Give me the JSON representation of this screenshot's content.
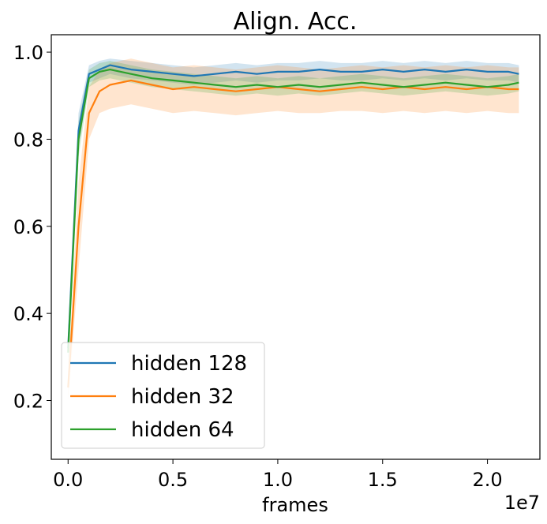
{
  "chart_data": {
    "type": "line",
    "title": "Align. Acc.",
    "xlabel": "frames",
    "ylabel": "",
    "x_offset_label": "1e7",
    "xlim": [
      -0.08,
      2.25
    ],
    "ylim": [
      0.065,
      1.04
    ],
    "x_ticks": [
      0.0,
      0.5,
      1.0,
      1.5,
      2.0
    ],
    "x_tick_labels": [
      "0.0",
      "0.5",
      "1.0",
      "1.5",
      "2.0"
    ],
    "y_ticks": [
      0.2,
      0.4,
      0.6,
      0.8,
      1.0
    ],
    "y_tick_labels": [
      "0.2",
      "0.4",
      "0.6",
      "0.8",
      "1.0"
    ],
    "grid": false,
    "legend_position": "lower-left",
    "x": [
      0.0,
      0.05,
      0.1,
      0.15,
      0.2,
      0.3,
      0.4,
      0.5,
      0.6,
      0.7,
      0.8,
      0.9,
      1.0,
      1.1,
      1.2,
      1.3,
      1.4,
      1.5,
      1.6,
      1.7,
      1.8,
      1.9,
      2.0,
      2.1,
      2.15
    ],
    "series": [
      {
        "name": "hidden 128",
        "color": "#1f77b4",
        "values": [
          0.32,
          0.82,
          0.95,
          0.96,
          0.97,
          0.96,
          0.955,
          0.95,
          0.945,
          0.95,
          0.955,
          0.95,
          0.955,
          0.955,
          0.96,
          0.955,
          0.955,
          0.96,
          0.955,
          0.96,
          0.955,
          0.96,
          0.955,
          0.955,
          0.95
        ],
        "lower": [
          0.29,
          0.78,
          0.93,
          0.94,
          0.95,
          0.94,
          0.935,
          0.93,
          0.925,
          0.93,
          0.935,
          0.93,
          0.935,
          0.935,
          0.94,
          0.935,
          0.935,
          0.94,
          0.935,
          0.94,
          0.935,
          0.94,
          0.935,
          0.935,
          0.93
        ],
        "upper": [
          0.35,
          0.86,
          0.97,
          0.98,
          0.985,
          0.98,
          0.975,
          0.97,
          0.965,
          0.97,
          0.975,
          0.97,
          0.975,
          0.975,
          0.98,
          0.975,
          0.975,
          0.98,
          0.975,
          0.98,
          0.975,
          0.98,
          0.975,
          0.975,
          0.97
        ]
      },
      {
        "name": "hidden 32",
        "color": "#ff7f0e",
        "values": [
          0.23,
          0.6,
          0.86,
          0.91,
          0.925,
          0.935,
          0.925,
          0.915,
          0.92,
          0.915,
          0.91,
          0.915,
          0.92,
          0.915,
          0.91,
          0.915,
          0.92,
          0.915,
          0.92,
          0.915,
          0.92,
          0.915,
          0.92,
          0.915,
          0.915
        ],
        "lower": [
          0.2,
          0.5,
          0.8,
          0.86,
          0.87,
          0.88,
          0.87,
          0.86,
          0.865,
          0.86,
          0.855,
          0.86,
          0.865,
          0.86,
          0.86,
          0.865,
          0.865,
          0.86,
          0.865,
          0.86,
          0.865,
          0.86,
          0.865,
          0.86,
          0.86
        ],
        "upper": [
          0.26,
          0.7,
          0.92,
          0.96,
          0.975,
          0.985,
          0.975,
          0.965,
          0.97,
          0.965,
          0.96,
          0.965,
          0.97,
          0.965,
          0.96,
          0.965,
          0.97,
          0.965,
          0.97,
          0.965,
          0.97,
          0.965,
          0.97,
          0.965,
          0.965
        ]
      },
      {
        "name": "hidden 64",
        "color": "#2ca02c",
        "values": [
          0.31,
          0.8,
          0.94,
          0.955,
          0.96,
          0.95,
          0.94,
          0.935,
          0.93,
          0.925,
          0.92,
          0.925,
          0.92,
          0.925,
          0.92,
          0.925,
          0.93,
          0.925,
          0.92,
          0.925,
          0.93,
          0.925,
          0.92,
          0.925,
          0.93
        ],
        "lower": [
          0.28,
          0.76,
          0.92,
          0.935,
          0.94,
          0.93,
          0.92,
          0.915,
          0.91,
          0.905,
          0.9,
          0.905,
          0.9,
          0.905,
          0.9,
          0.905,
          0.91,
          0.905,
          0.9,
          0.905,
          0.91,
          0.905,
          0.9,
          0.905,
          0.91
        ],
        "upper": [
          0.34,
          0.84,
          0.96,
          0.975,
          0.98,
          0.97,
          0.96,
          0.955,
          0.95,
          0.945,
          0.94,
          0.945,
          0.94,
          0.945,
          0.94,
          0.945,
          0.95,
          0.945,
          0.94,
          0.945,
          0.95,
          0.945,
          0.94,
          0.945,
          0.95
        ]
      }
    ]
  }
}
